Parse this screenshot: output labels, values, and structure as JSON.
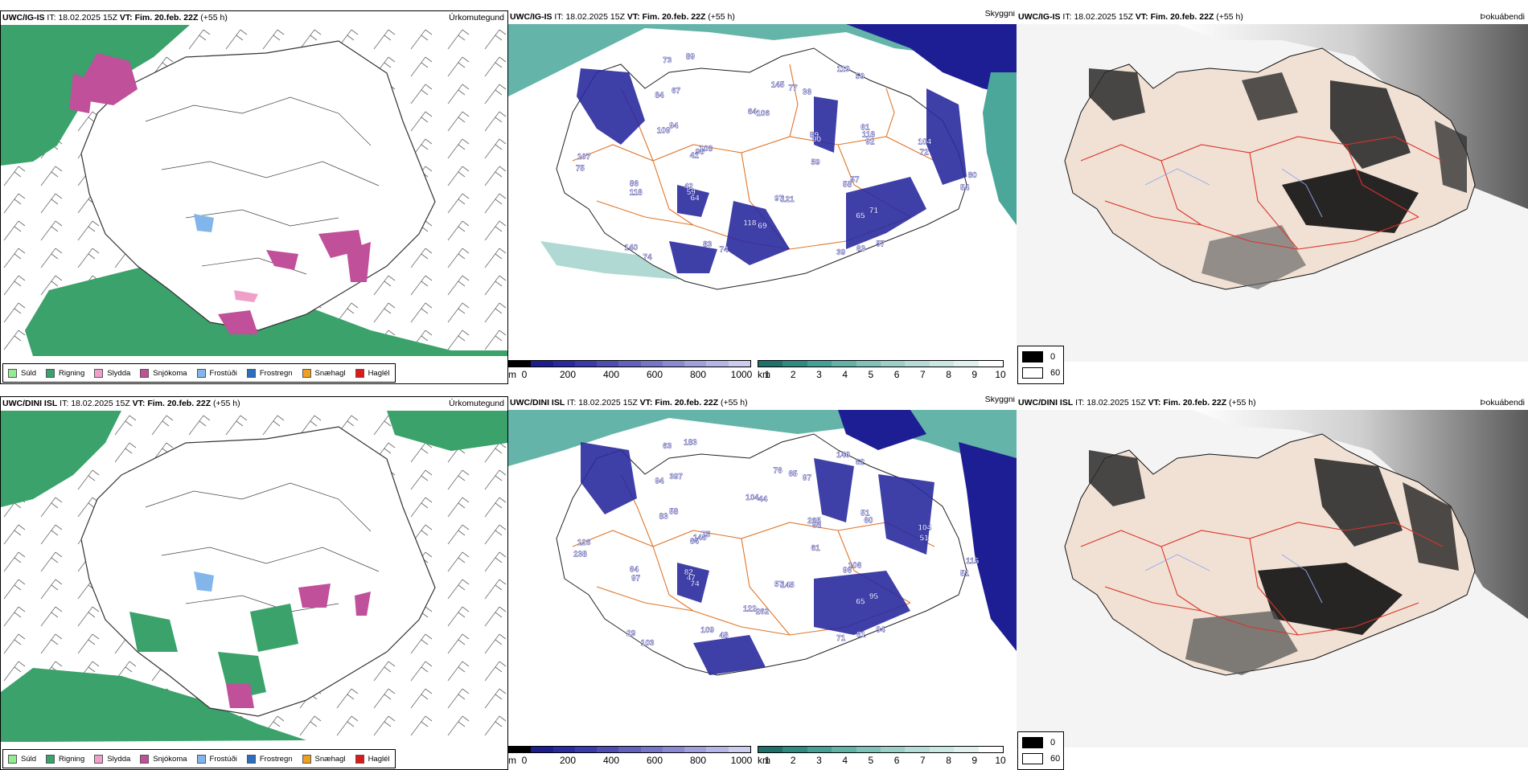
{
  "rows": [
    {
      "model": "UWC/IG-IS",
      "it_label": "IT:",
      "it_value": "18.02.2025 15Z",
      "vt_label": "VT:",
      "vt_value": "Fim. 20.feb. 22Z",
      "lead": "(+55 h)",
      "precip_labels": [
        "59",
        "64",
        "145",
        "57",
        "41",
        "61",
        "74",
        "73",
        "57",
        "118",
        "119",
        "121",
        "109",
        "104",
        "74",
        "64",
        "71",
        "75",
        "89",
        "69",
        "84",
        "80",
        "59",
        "77",
        "63",
        "90",
        "118",
        "83",
        "89",
        "58",
        "86",
        "59",
        "97",
        "94",
        "72",
        "140",
        "106",
        "65",
        "107",
        "90",
        "118",
        "67",
        "54",
        "42",
        "36",
        "39",
        "108",
        "92"
      ]
    },
    {
      "model": "UWC/DINI ISL",
      "it_label": "IT:",
      "it_value": "18.02.2025 15Z",
      "vt_label": "VT:",
      "vt_value": "Fim. 20.feb. 22Z",
      "lead": "(+55 h)",
      "precip_labels": [
        "61",
        "74",
        "76",
        "94",
        "64",
        "51",
        "48",
        "63",
        "106",
        "97",
        "140",
        "145",
        "83",
        "104",
        "103",
        "104",
        "95",
        "238",
        "265",
        "262",
        "94",
        "115",
        "47",
        "65",
        "61",
        "146",
        "60",
        "109",
        "183",
        "96",
        "64",
        "62",
        "57",
        "58",
        "51",
        "29",
        "44",
        "65",
        "126",
        "98",
        "122",
        "397",
        "51",
        "82",
        "97",
        "71",
        "75"
      ]
    }
  ],
  "panel_types": {
    "precip": "Úrkomutegund",
    "visibility": "Skyggni",
    "cloud": "Þokuábendi"
  },
  "precip_legend": [
    {
      "label": "Súld",
      "color": "#90ee90"
    },
    {
      "label": "Rigning",
      "color": "#3aa26a"
    },
    {
      "label": "Slydda",
      "color": "#f0a0c8"
    },
    {
      "label": "Snjókoma",
      "color": "#c0509a"
    },
    {
      "label": "Frostúði",
      "color": "#82b6ea"
    },
    {
      "label": "Frostregn",
      "color": "#2c6fc0"
    },
    {
      "label": "Snæhagl",
      "color": "#f0a020"
    },
    {
      "label": "Haglél",
      "color": "#e01818"
    }
  ],
  "height_bar": {
    "unit": "m",
    "ticks": [
      "0",
      "200",
      "400",
      "600",
      "800",
      "1000"
    ],
    "colors": [
      "#000000",
      "#1d1d8c",
      "#2a2a9e",
      "#3a3aaa",
      "#4d4db4",
      "#6262be",
      "#7676c8",
      "#8a8ad2",
      "#a0a0dc",
      "#b6b6e6",
      "#ccccee"
    ]
  },
  "visibility_bar": {
    "unit": "km",
    "ticks": [
      "1",
      "2",
      "3",
      "4",
      "5",
      "6",
      "7",
      "8",
      "9",
      "10"
    ],
    "colors": [
      "#1f6f6a",
      "#2f8a82",
      "#46a096",
      "#63b2a8",
      "#80c2b9",
      "#9ccfc8",
      "#b5dcd6",
      "#cbe7e2",
      "#e0f1ee",
      "#ffffff"
    ]
  },
  "cloud_legend": [
    {
      "label": "0",
      "color": "#000000"
    },
    {
      "label": "60",
      "color": "#ffffff"
    }
  ],
  "colors": {
    "ocean_vis": "#4aa79a",
    "land_beige": "#f1e1d4",
    "road_orange": "#e0762a",
    "road_red": "#d9342a",
    "lake_blue": "#8fa8f0",
    "snow_dark": "#1e1e94"
  }
}
